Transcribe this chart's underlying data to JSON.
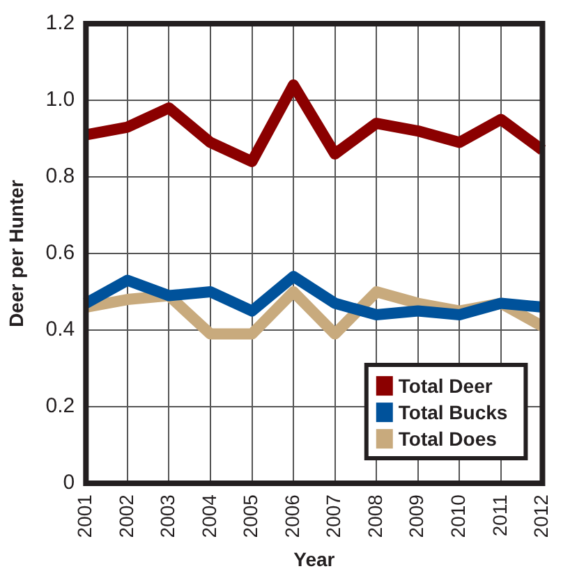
{
  "chart_data": {
    "type": "line",
    "xlabel": "Year",
    "ylabel": "Deer per Hunter",
    "categories": [
      "2001",
      "2002",
      "2003",
      "2004",
      "2005",
      "2006",
      "2007",
      "2008",
      "2009",
      "2010",
      "2011",
      "2012"
    ],
    "series": [
      {
        "name": "Total Deer",
        "color": "#8b0000",
        "values": [
          0.91,
          0.93,
          0.98,
          0.89,
          0.84,
          1.04,
          0.86,
          0.94,
          0.92,
          0.89,
          0.95,
          0.87
        ]
      },
      {
        "name": "Total Bucks",
        "color": "#00529b",
        "values": [
          0.47,
          0.53,
          0.49,
          0.5,
          0.45,
          0.54,
          0.47,
          0.44,
          0.45,
          0.44,
          0.47,
          0.46
        ]
      },
      {
        "name": "Total Does",
        "color": "#c8aa7d",
        "values": [
          0.46,
          0.48,
          0.49,
          0.39,
          0.39,
          0.5,
          0.39,
          0.5,
          0.47,
          0.45,
          0.47,
          0.41
        ]
      }
    ],
    "ylim": [
      0,
      1.2
    ],
    "yticks": [
      0,
      0.2,
      {
        "value": 0.4,
        "label": "0.4"
      },
      {
        "value": 0.6,
        "label": "0.6"
      },
      {
        "value": 0.8,
        "label": "0.8"
      },
      {
        "value": 1,
        "label": "1.0"
      },
      {
        "value": 1.2,
        "label": "1.2"
      }
    ],
    "grid": true,
    "legend": "bottom right",
    "marker": "none",
    "line_style": "solid"
  }
}
